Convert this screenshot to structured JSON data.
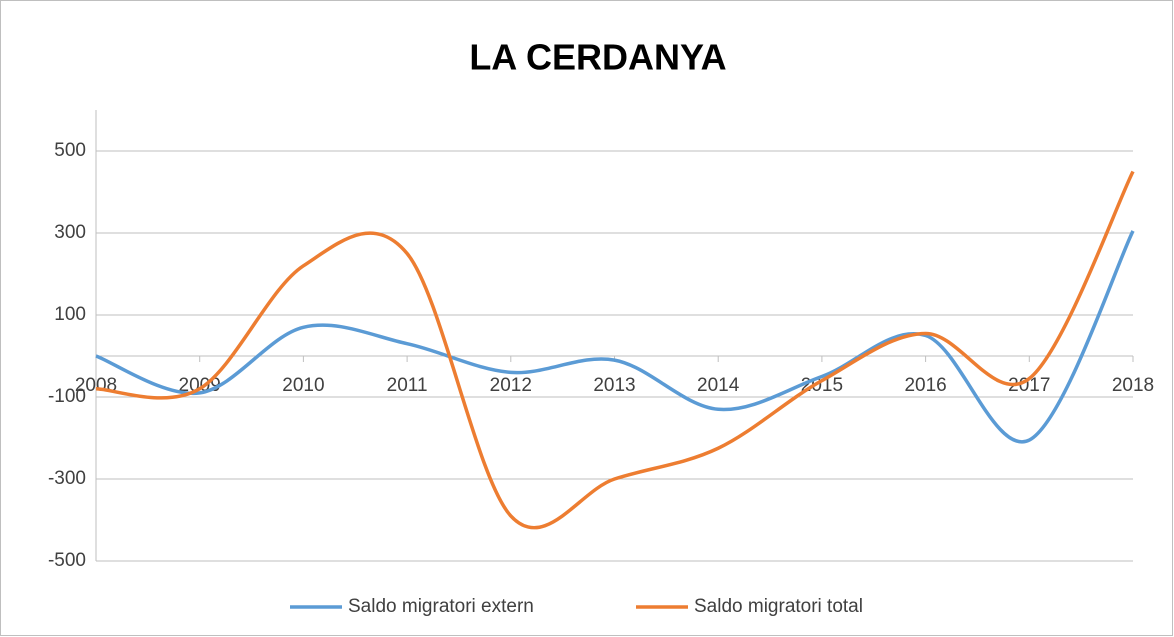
{
  "chart_data": {
    "type": "line",
    "title": "LA CERDANYA",
    "smooth": true,
    "grid": true,
    "legend": "bottom",
    "categories": [
      "2008",
      "2009",
      "2010",
      "2011",
      "2012",
      "2013",
      "2014",
      "2015",
      "2016",
      "2017",
      "2018"
    ],
    "series": [
      {
        "name": "Saldo migratori extern",
        "color": "#5b9bd5",
        "values": [
          0,
          -90,
          70,
          30,
          -40,
          -10,
          -130,
          -50,
          50,
          -205,
          305
        ]
      },
      {
        "name": "Saldo migratori total",
        "color": "#ed7d31",
        "values": [
          -80,
          -80,
          220,
          250,
          -390,
          -300,
          -225,
          -60,
          55,
          -55,
          450
        ]
      }
    ],
    "ylim": [
      -500,
      600
    ],
    "yticks": [
      -500,
      -300,
      -100,
      100,
      300,
      500
    ]
  }
}
